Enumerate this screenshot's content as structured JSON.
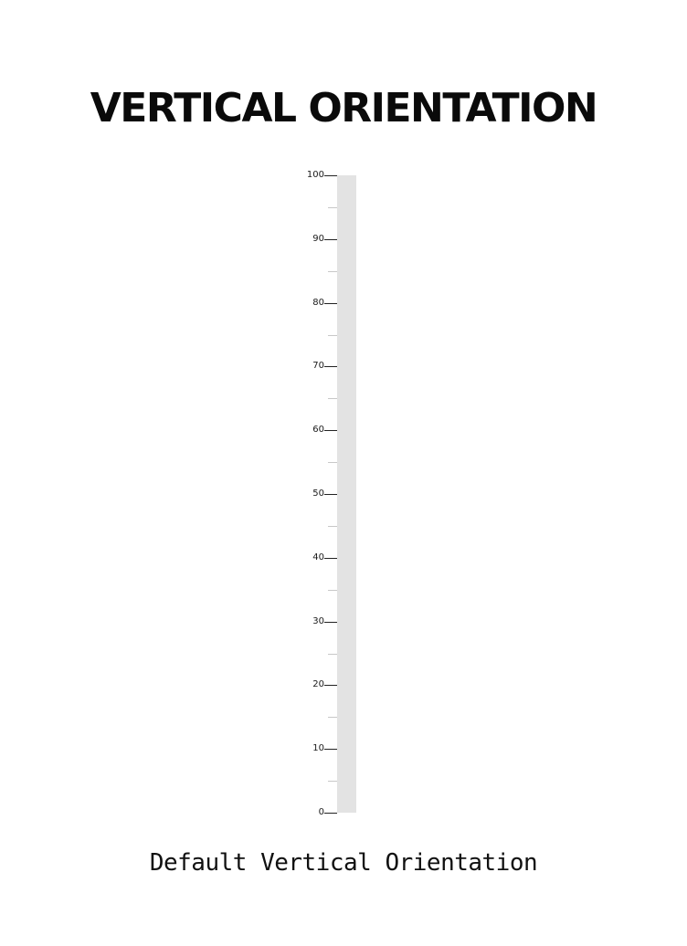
{
  "page": {
    "title": "VERTICAL ORIENTATION",
    "caption": "Default Vertical Orientation"
  },
  "slider": {
    "min": 0,
    "max": 100,
    "value": 0,
    "orientation": "vertical",
    "major_step": 10,
    "minor_step": 5,
    "track_color": "#e3e3e3",
    "labels": [
      "100",
      "90",
      "80",
      "70",
      "60",
      "50",
      "40",
      "30",
      "20",
      "10",
      "0"
    ]
  }
}
